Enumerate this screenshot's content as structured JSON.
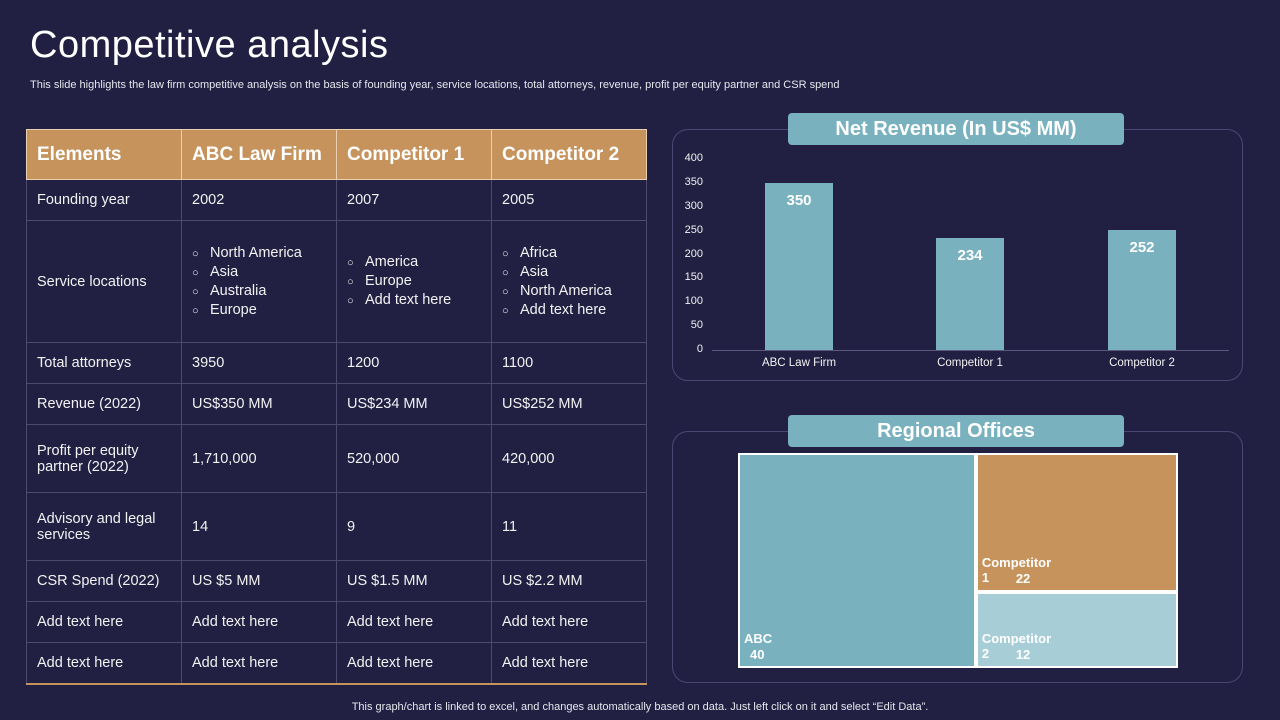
{
  "header": {
    "title": "Competitive analysis",
    "subtitle": "This slide highlights the law firm competitive analysis on the basis of founding year, service locations, total attorneys, revenue, profit per equity partner and CSR spend"
  },
  "table": {
    "headers": [
      "Elements",
      "ABC Law Firm",
      "Competitor 1",
      "Competitor 2"
    ],
    "rows": [
      {
        "label": "Founding year",
        "values": [
          "2002",
          "2007",
          "2005"
        ]
      },
      {
        "label": "Service locations",
        "lists": [
          [
            "North America",
            "Asia",
            "Australia",
            "Europe"
          ],
          [
            "America",
            "Europe",
            "Add text here"
          ],
          [
            "Africa",
            "Asia",
            "North America",
            "Add text here"
          ]
        ]
      },
      {
        "label": "Total attorneys",
        "values": [
          "3950",
          "1200",
          "1100"
        ]
      },
      {
        "label": "Revenue (2022)",
        "values": [
          "US$350 MM",
          "US$234 MM",
          "US$252 MM"
        ]
      },
      {
        "label": "Profit per equity partner (2022)",
        "values": [
          "1,710,000",
          "520,000",
          "420,000"
        ]
      },
      {
        "label": "Advisory and legal services",
        "values": [
          "14",
          "9",
          "11"
        ]
      },
      {
        "label": "CSR Spend (2022)",
        "values": [
          "US $5 MM",
          "US $1.5 MM",
          "US $2.2 MM"
        ]
      },
      {
        "label": "Add text here",
        "values": [
          "Add text here",
          "Add text here",
          "Add text here"
        ]
      },
      {
        "label": "Add text here",
        "values": [
          "Add text here",
          "Add text here",
          "Add text here"
        ]
      }
    ]
  },
  "chart_data": [
    {
      "type": "bar",
      "title": "Net Revenue (In US$ MM)",
      "categories": [
        "ABC Law Firm",
        "Competitor 1",
        "Competitor 2"
      ],
      "values": [
        350,
        234,
        252
      ],
      "yticks": [
        "0",
        "50",
        "100",
        "150",
        "200",
        "250",
        "300",
        "350",
        "400"
      ],
      "ylim": [
        0,
        400
      ],
      "xlabel": "",
      "ylabel": "",
      "color": "#79b1bf"
    },
    {
      "type": "treemap",
      "title": "Regional Offices",
      "items": [
        {
          "name": "ABC",
          "value": 40,
          "color": "#79b1bf"
        },
        {
          "name": "Competitor 1",
          "value": 22,
          "color": "#c6935d"
        },
        {
          "name": "Competitor 2",
          "value": 12,
          "color": "#a7cdd6"
        }
      ]
    }
  ],
  "footer": {
    "note": "This graph/chart is linked to excel, and changes automatically based on data. Just left click on it and select “Edit Data”."
  }
}
